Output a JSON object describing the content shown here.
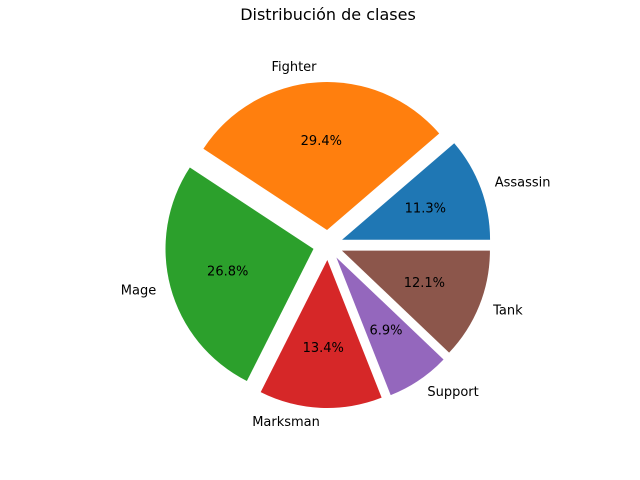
{
  "chart_data": {
    "type": "pie",
    "title": "Distribución de clases",
    "categories": [
      "Assassin",
      "Fighter",
      "Mage",
      "Marksman",
      "Support",
      "Tank"
    ],
    "values": [
      11.3,
      29.4,
      26.8,
      13.4,
      6.9,
      12.1
    ],
    "percent_labels": [
      "11.3%",
      "29.4%",
      "26.8%",
      "13.4%",
      "6.9%",
      "12.1%"
    ],
    "colors": [
      "#1f77b4",
      "#ff7f0e",
      "#2ca02c",
      "#d62728",
      "#9467bd",
      "#8c564b"
    ],
    "exploded": true,
    "start_angle_deg": 0,
    "direction": "counterclockwise"
  }
}
